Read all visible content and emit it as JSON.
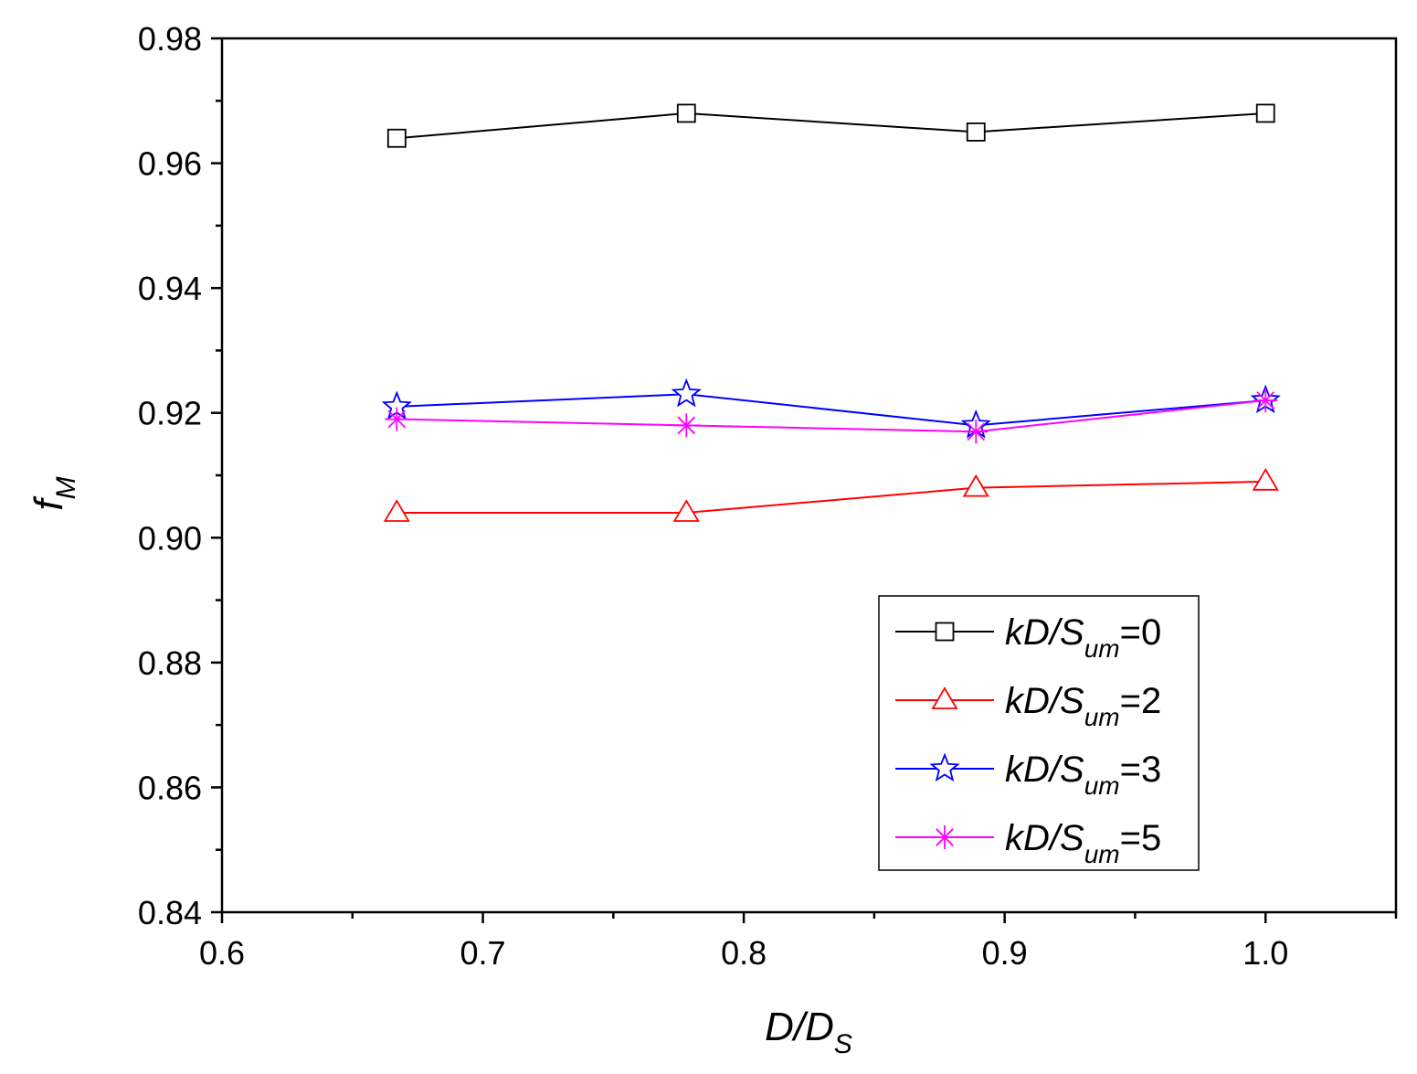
{
  "chart_data": {
    "type": "line",
    "xlabel": {
      "main": "D/D",
      "sub": "S"
    },
    "ylabel": {
      "main": "f",
      "sub": "M"
    },
    "xlim": [
      0.6,
      1.05
    ],
    "ylim": [
      0.84,
      0.98
    ],
    "x_ticks": [
      "0.6",
      "0.7",
      "0.8",
      "0.9",
      "1.0"
    ],
    "y_ticks": [
      "0.84",
      "0.86",
      "0.88",
      "0.90",
      "0.92",
      "0.94",
      "0.96",
      "0.98"
    ],
    "x": [
      0.667,
      0.778,
      0.889,
      1.0
    ],
    "legend_position": "lower-right",
    "series": [
      {
        "name": "kD/S",
        "sub": "um",
        "suffix": "=0",
        "marker": "square",
        "color": "#000000",
        "values": [
          0.964,
          0.968,
          0.965,
          0.968
        ]
      },
      {
        "name": "kD/S",
        "sub": "um",
        "suffix": "=2",
        "marker": "triangle",
        "color": "#ff0000",
        "values": [
          0.904,
          0.904,
          0.908,
          0.909
        ]
      },
      {
        "name": "kD/S",
        "sub": "um",
        "suffix": "=3",
        "marker": "star",
        "color": "#0000ff",
        "values": [
          0.921,
          0.923,
          0.918,
          0.922
        ]
      },
      {
        "name": "kD/S",
        "sub": "um",
        "suffix": "=5",
        "marker": "asterisk",
        "color": "#ff00ff",
        "values": [
          0.919,
          0.918,
          0.917,
          0.922
        ]
      }
    ]
  }
}
